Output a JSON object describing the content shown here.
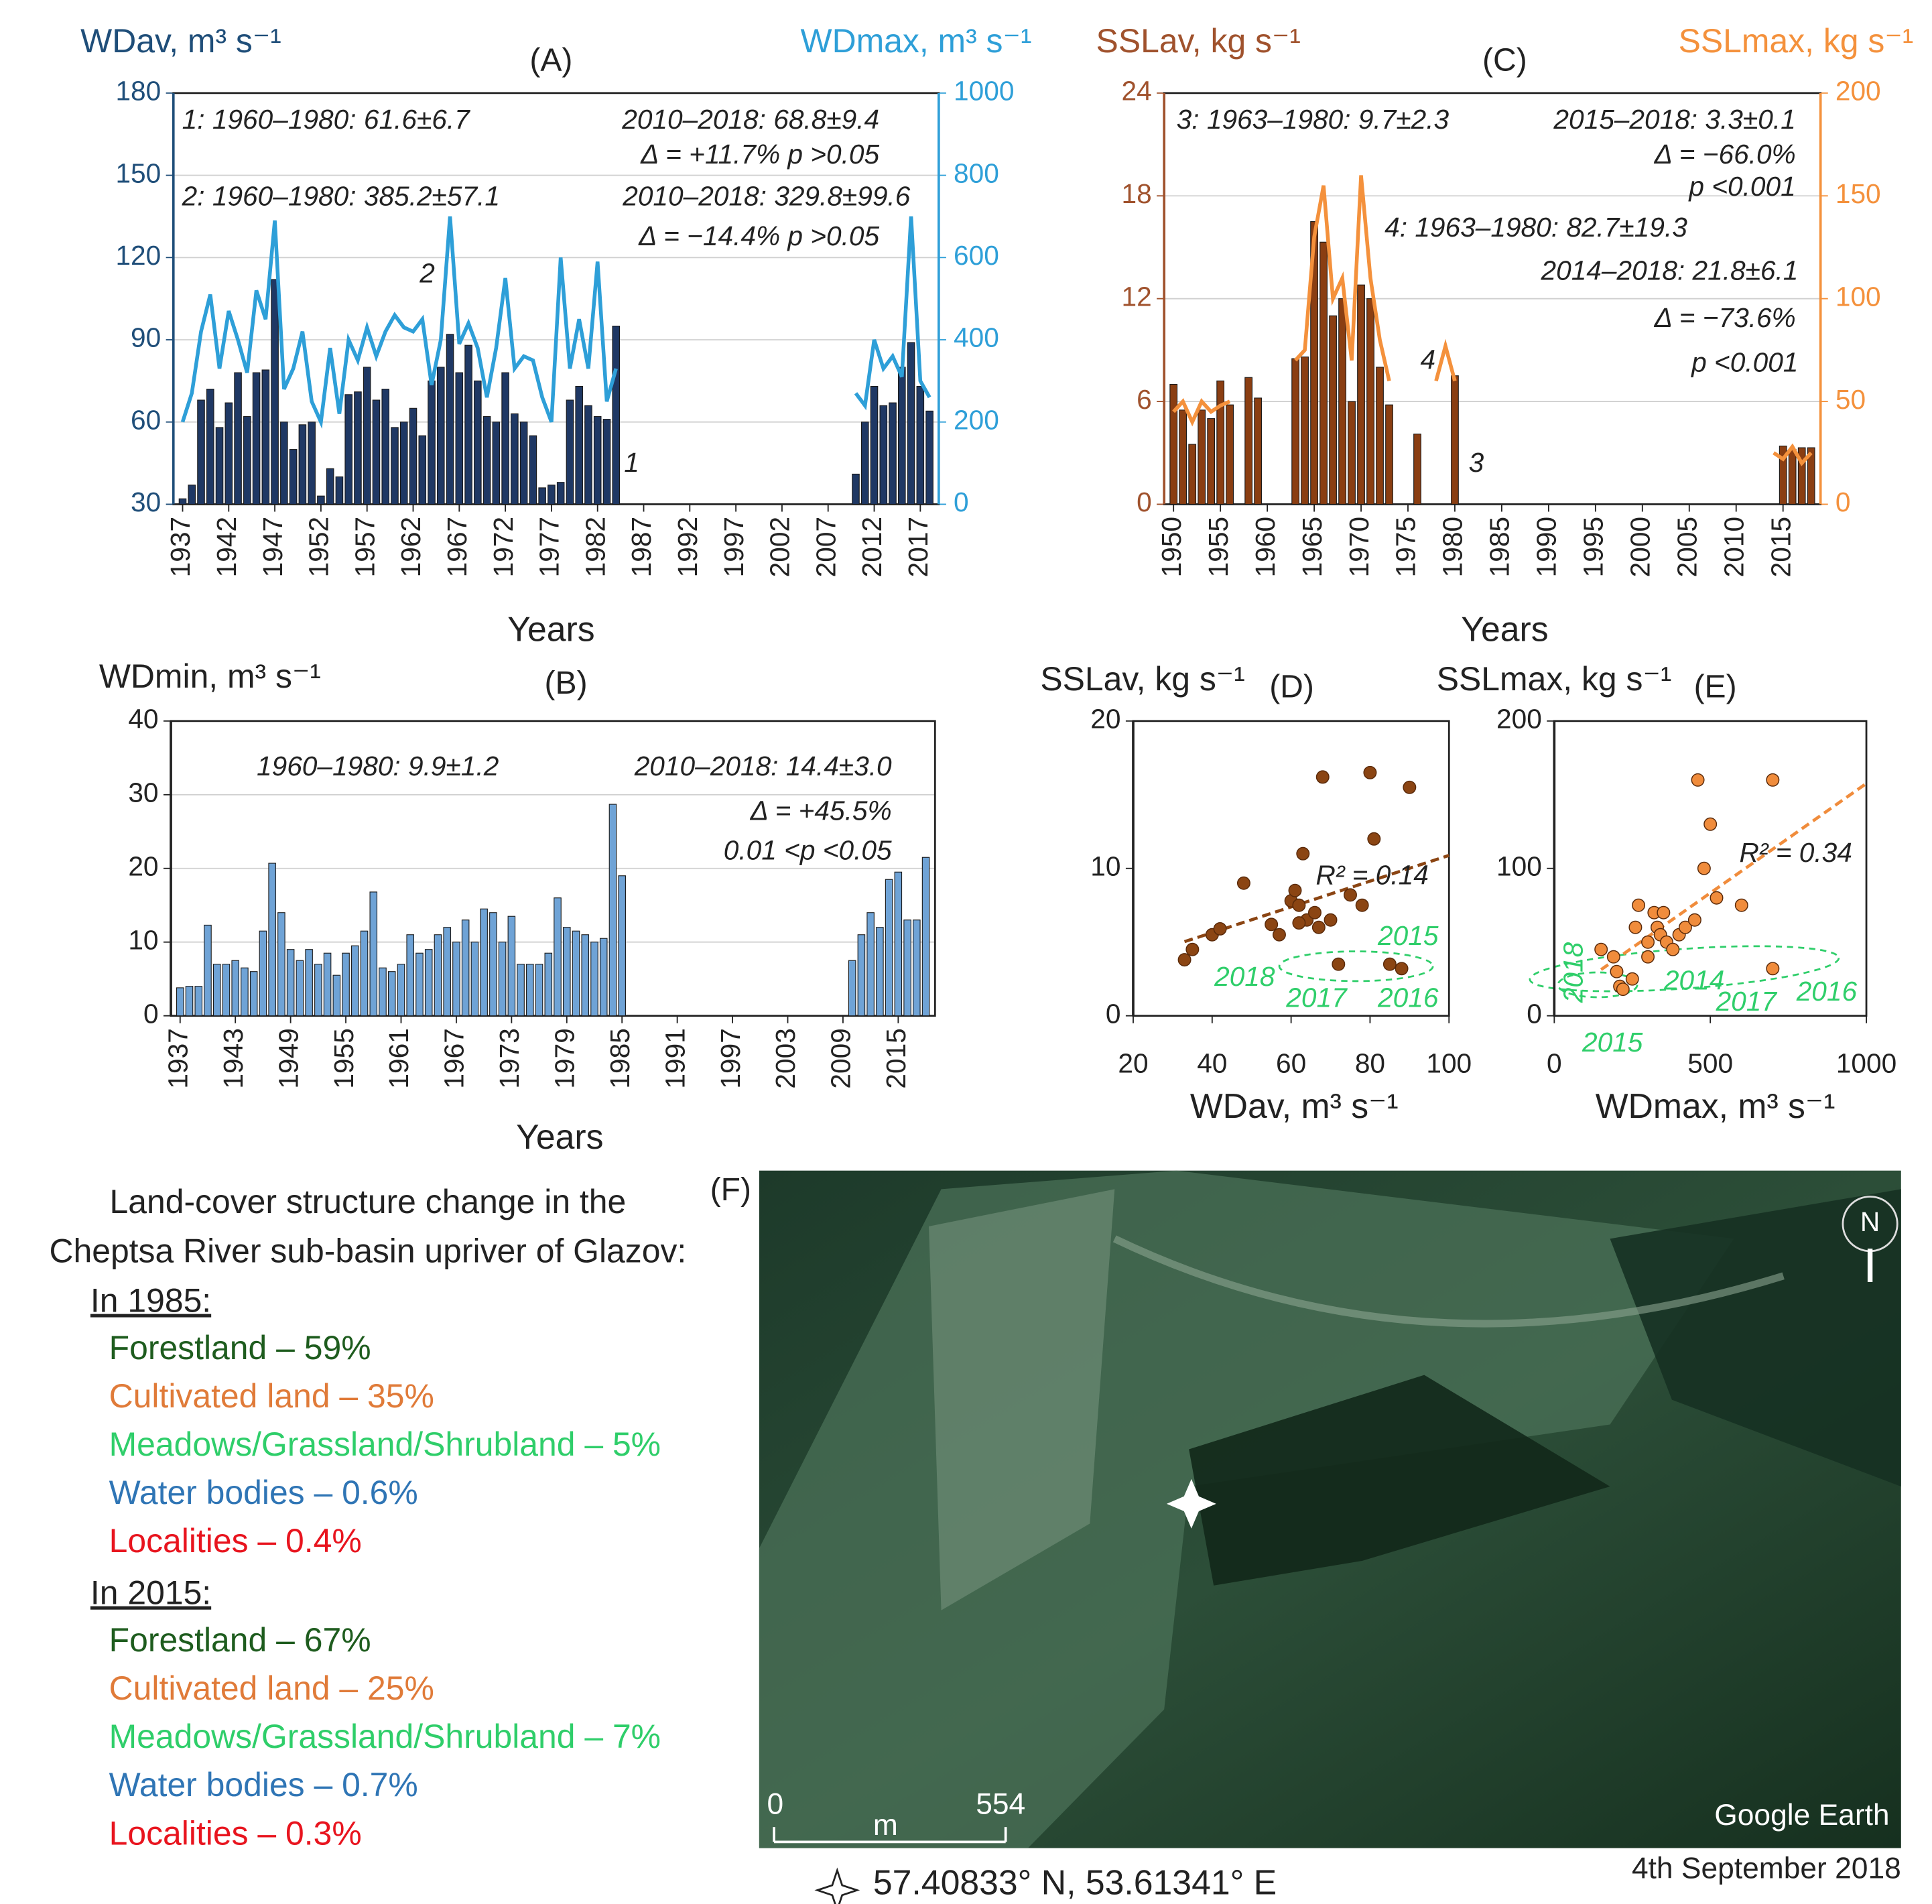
{
  "chart_data": [
    {
      "type": "combo",
      "title": "(A)",
      "xlabel": "Years",
      "ylabel": "WDav, m³ s⁻¹",
      "y2label": "WDmax, m³ s⁻¹",
      "x": [
        1937,
        1938,
        1939,
        1940,
        1941,
        1942,
        1943,
        1944,
        1945,
        1946,
        1947,
        1948,
        1949,
        1950,
        1951,
        1952,
        1953,
        1954,
        1955,
        1956,
        1957,
        1958,
        1959,
        1960,
        1961,
        1962,
        1963,
        1964,
        1965,
        1966,
        1967,
        1968,
        1969,
        1970,
        1971,
        1972,
        1973,
        1974,
        1975,
        1976,
        1977,
        1978,
        1979,
        1980,
        1981,
        1982,
        1983,
        1984,
        1985,
        1986,
        1987,
        1988,
        1989,
        1990,
        1991,
        1992,
        1993,
        1994,
        1995,
        1996,
        1997,
        1998,
        1999,
        2000,
        2001,
        2002,
        2003,
        2004,
        2005,
        2006,
        2007,
        2008,
        2009,
        2010,
        2011,
        2012,
        2013,
        2014,
        2015,
        2016,
        2017,
        2018
      ],
      "xlim": [
        1936,
        2019
      ],
      "xticks": [
        1937,
        1942,
        1947,
        1952,
        1957,
        1962,
        1967,
        1972,
        1977,
        1982,
        1987,
        1992,
        1997,
        2002,
        2007,
        2012,
        2017
      ],
      "ylim": [
        30,
        180
      ],
      "yticks": [
        30,
        60,
        90,
        120,
        150,
        180
      ],
      "y2lim": [
        0,
        1000
      ],
      "y2ticks": [
        0,
        200,
        400,
        600,
        800,
        1000
      ],
      "grid": true,
      "series": [
        {
          "mark": "bar",
          "color": "#1f3864",
          "values": [
            32,
            37,
            68,
            72,
            58,
            67,
            78,
            62,
            78,
            79,
            112,
            60,
            50,
            59,
            60,
            33,
            43,
            40,
            70,
            71,
            80,
            68,
            72,
            58,
            60,
            65,
            55,
            75,
            80,
            92,
            78,
            88,
            75,
            62,
            60,
            78,
            63,
            60,
            55,
            36,
            37,
            38,
            68,
            73,
            66,
            62,
            61,
            95,
            null,
            null,
            null,
            null,
            null,
            null,
            null,
            null,
            null,
            null,
            null,
            null,
            null,
            null,
            null,
            null,
            null,
            null,
            null,
            null,
            null,
            null,
            null,
            null,
            null,
            41,
            60,
            73,
            66,
            67,
            80,
            89,
            73,
            64
          ]
        },
        {
          "mark": "line",
          "axis": "y2",
          "color": "#2e9fd8",
          "values": [
            200,
            270,
            420,
            510,
            330,
            470,
            400,
            320,
            520,
            450,
            690,
            280,
            330,
            420,
            250,
            200,
            380,
            220,
            400,
            350,
            430,
            360,
            420,
            460,
            430,
            420,
            450,
            290,
            400,
            700,
            390,
            440,
            380,
            260,
            380,
            550,
            330,
            360,
            350,
            260,
            200,
            600,
            330,
            450,
            330,
            590,
            250,
            330,
            null,
            null,
            null,
            null,
            null,
            null,
            null,
            null,
            null,
            null,
            null,
            null,
            null,
            null,
            null,
            null,
            null,
            null,
            null,
            null,
            null,
            null,
            null,
            null,
            null,
            270,
            240,
            400,
            330,
            360,
            310,
            700,
            300,
            260
          ]
        }
      ],
      "annotations": [
        "1: 1960–1980: 61.6±6.7",
        "2010–2018: 68.8±9.4",
        "Δ = +11.7%   p >0.05",
        "2: 1960–1980: 385.2±57.1",
        "2010–2018: 329.8±99.6",
        "Δ = −14.4%   p >0.05",
        "2",
        "1"
      ]
    },
    {
      "type": "bar",
      "title": "(B)",
      "xlabel": "Years",
      "ylabel": "WDmin, m³ s⁻¹",
      "x": [
        1937,
        1938,
        1939,
        1940,
        1941,
        1942,
        1943,
        1944,
        1945,
        1946,
        1947,
        1948,
        1949,
        1950,
        1951,
        1952,
        1953,
        1954,
        1955,
        1956,
        1957,
        1958,
        1959,
        1960,
        1961,
        1962,
        1963,
        1964,
        1965,
        1966,
        1967,
        1968,
        1969,
        1970,
        1971,
        1972,
        1973,
        1974,
        1975,
        1976,
        1977,
        1978,
        1979,
        1980,
        1981,
        1982,
        1983,
        1984,
        1985,
        1986,
        1987,
        1988,
        1989,
        1990,
        1991,
        1992,
        1993,
        1994,
        1995,
        1996,
        1997,
        1998,
        1999,
        2000,
        2001,
        2002,
        2003,
        2004,
        2005,
        2006,
        2007,
        2008,
        2009,
        2010,
        2011,
        2012,
        2013,
        2014,
        2015,
        2016,
        2017,
        2018
      ],
      "xlim": [
        1936,
        2019
      ],
      "xticks": [
        1937,
        1943,
        1949,
        1955,
        1961,
        1967,
        1973,
        1979,
        1985,
        1991,
        1997,
        2003,
        2009,
        2015
      ],
      "ylim": [
        0,
        40
      ],
      "yticks": [
        0,
        10,
        20,
        30,
        40
      ],
      "grid": true,
      "series": [
        {
          "mark": "bar",
          "color": "#6fa3d6",
          "values": [
            3.8,
            4,
            4,
            12.3,
            7,
            7,
            7.5,
            6.5,
            6,
            11.5,
            20.7,
            14,
            9,
            7.5,
            9,
            7,
            8.5,
            5.5,
            8.5,
            9.5,
            11.5,
            16.8,
            6.5,
            6,
            7,
            11,
            8.5,
            9,
            11,
            12,
            10,
            13,
            10,
            14.5,
            14,
            10,
            13.5,
            7,
            7,
            7,
            8.5,
            16,
            12,
            11.5,
            11,
            10,
            10.5,
            28.7,
            19,
            null,
            null,
            null,
            null,
            null,
            null,
            null,
            null,
            null,
            null,
            null,
            null,
            null,
            null,
            null,
            null,
            null,
            null,
            null,
            null,
            null,
            null,
            null,
            null,
            7.5,
            11,
            14,
            12,
            18.5,
            19.5,
            13,
            13,
            21.5
          ]
        }
      ],
      "annotations": [
        "1960–1980: 9.9±1.2",
        "2010–2018: 14.4±3.0",
        "Δ = +45.5%",
        "0.01 <p <0.05"
      ]
    },
    {
      "type": "combo",
      "title": "(C)",
      "xlabel": "Years",
      "ylabel": "SSLav, kg s⁻¹",
      "y2label": "SSLmax, kg s⁻¹",
      "x": [
        1950,
        1951,
        1952,
        1953,
        1954,
        1955,
        1956,
        1957,
        1958,
        1959,
        1960,
        1961,
        1962,
        1963,
        1964,
        1965,
        1966,
        1967,
        1968,
        1969,
        1970,
        1971,
        1972,
        1973,
        1974,
        1975,
        1976,
        1977,
        1978,
        1979,
        1980,
        1981,
        1982,
        1983,
        1984,
        1985,
        1986,
        1987,
        1988,
        1989,
        1990,
        1991,
        1992,
        1993,
        1994,
        1995,
        1996,
        1997,
        1998,
        1999,
        2000,
        2001,
        2002,
        2003,
        2004,
        2005,
        2006,
        2007,
        2008,
        2009,
        2010,
        2011,
        2012,
        2013,
        2014,
        2015,
        2016,
        2017,
        2018
      ],
      "xlim": [
        1949,
        2019
      ],
      "xticks": [
        1950,
        1955,
        1960,
        1965,
        1970,
        1975,
        1980,
        1985,
        1990,
        1995,
        2000,
        2005,
        2010,
        2015
      ],
      "ylim": [
        0,
        24
      ],
      "yticks": [
        0,
        6,
        12,
        18,
        24
      ],
      "y2lim": [
        0,
        200
      ],
      "y2ticks": [
        0,
        50,
        100,
        150,
        200
      ],
      "grid": true,
      "series": [
        {
          "mark": "bar",
          "color": "#8a3e12",
          "values": [
            7,
            5.5,
            3.5,
            5.5,
            5,
            7.2,
            5.8,
            null,
            7.4,
            6.2,
            null,
            null,
            null,
            8.5,
            8.6,
            16.5,
            15.3,
            11,
            12,
            6,
            12.8,
            12,
            8,
            5.8,
            null,
            null,
            4.1,
            null,
            null,
            null,
            7.5,
            null,
            null,
            null,
            null,
            null,
            null,
            null,
            null,
            null,
            null,
            null,
            null,
            null,
            null,
            null,
            null,
            null,
            null,
            null,
            null,
            null,
            null,
            null,
            null,
            null,
            null,
            null,
            null,
            null,
            null,
            null,
            null,
            null,
            null,
            3.4,
            3.2,
            3.3,
            3.3
          ]
        },
        {
          "mark": "line",
          "axis": "y2",
          "color": "#f4913c",
          "values": [
            45,
            50,
            40,
            50,
            45,
            48,
            50,
            null,
            null,
            null,
            null,
            null,
            null,
            70,
            75,
            130,
            155,
            100,
            110,
            70,
            160,
            110,
            80,
            60,
            null,
            null,
            null,
            null,
            60,
            77,
            60,
            null,
            null,
            null,
            null,
            null,
            null,
            null,
            null,
            null,
            null,
            null,
            null,
            null,
            null,
            null,
            null,
            null,
            null,
            null,
            null,
            null,
            null,
            null,
            null,
            null,
            null,
            null,
            null,
            null,
            null,
            null,
            null,
            null,
            25,
            22,
            28,
            20,
            25
          ]
        }
      ],
      "annotations": [
        "3: 1963–1980: 9.7±2.3",
        "2015–2018: 3.3±0.1",
        "Δ = −66.0%",
        "p <0.001",
        "4: 1963–1980: 82.7±19.3",
        "2014–2018: 21.8±6.1",
        "Δ = −73.6%",
        "p <0.001",
        "4",
        "3"
      ]
    },
    {
      "type": "scatter",
      "title": "(D)",
      "xlabel": "WDav, m³ s⁻¹",
      "ylabel": "SSLav, kg s⁻¹",
      "color": "#8b4513",
      "x": [
        33,
        35,
        40,
        42,
        48,
        55,
        57,
        60,
        61,
        62,
        63,
        64,
        66,
        67,
        68,
        70,
        72,
        75,
        78,
        80,
        81,
        85,
        88,
        90,
        62
      ],
      "y": [
        3.8,
        4.5,
        5.5,
        5.9,
        9,
        6.2,
        5.5,
        7.8,
        8.5,
        7.5,
        11,
        6.5,
        7,
        6,
        16.2,
        6.5,
        3.5,
        8.2,
        7.5,
        16.5,
        12,
        3.5,
        3.2,
        15.5,
        6.3
      ],
      "xlim": [
        20,
        100
      ],
      "xticks": [
        20,
        40,
        60,
        80,
        100
      ],
      "ylim": [
        0,
        20
      ],
      "yticks": [
        0,
        10,
        20
      ],
      "annotations": [
        "R² = 0.14",
        "2015",
        "2016",
        "2017",
        "2018"
      ]
    },
    {
      "type": "scatter",
      "title": "(E)",
      "xlabel": "WDmax, m³ s⁻¹",
      "ylabel": "SSLmax, kg s⁻¹",
      "color": "#f08c3c",
      "x": [
        150,
        190,
        200,
        210,
        220,
        250,
        260,
        270,
        300,
        320,
        330,
        340,
        350,
        360,
        380,
        400,
        420,
        450,
        460,
        480,
        500,
        520,
        600,
        700,
        700,
        300
      ],
      "y": [
        45,
        40,
        30,
        20,
        18,
        25,
        60,
        75,
        50,
        70,
        60,
        55,
        70,
        50,
        45,
        55,
        60,
        65,
        160,
        100,
        130,
        80,
        75,
        160,
        32,
        40
      ],
      "xlim": [
        0,
        1000
      ],
      "xticks": [
        0,
        500,
        1000
      ],
      "ylim": [
        0,
        200
      ],
      "yticks": [
        0,
        100,
        200
      ],
      "annotations": [
        "R² = 0.34",
        "2018",
        "2015",
        "2014",
        "2017",
        "2016"
      ]
    }
  ],
  "panel_f": "(F)",
  "land_cover": {
    "title": [
      "Land-cover structure change in the",
      "Cheptsa River sub-basin upriver of Glazov:"
    ],
    "periods": [
      {
        "label": "In 1985:",
        "items": [
          {
            "text": "Forestland – 59%",
            "color": "#1e5c1e"
          },
          {
            "text": "Cultivated land – 35%",
            "color": "#e07b39"
          },
          {
            "text": "Meadows/Grassland/Shrubland – 5%",
            "color": "#2fce6a"
          },
          {
            "text": "Water bodies – 0.6%",
            "color": "#2f75b5"
          },
          {
            "text": "Localities – 0.4%",
            "color": "#e8141e"
          }
        ]
      },
      {
        "label": "In 2015:",
        "items": [
          {
            "text": "Forestland – 67%",
            "color": "#1e5c1e"
          },
          {
            "text": "Cultivated land – 25%",
            "color": "#e07b39"
          },
          {
            "text": "Meadows/Grassland/Shrubland – 7%",
            "color": "#2fce6a"
          },
          {
            "text": "Water bodies – 0.7%",
            "color": "#2f75b5"
          },
          {
            "text": "Localities – 0.3%",
            "color": "#e8141e"
          }
        ]
      }
    ]
  },
  "image": {
    "brand": "Google Earth",
    "scale_start": "0",
    "scale_unit": "m",
    "scale_end": "554",
    "north": "N",
    "coordinates": "57.40833° N, 53.61341° E",
    "date": "4th September 2018"
  }
}
